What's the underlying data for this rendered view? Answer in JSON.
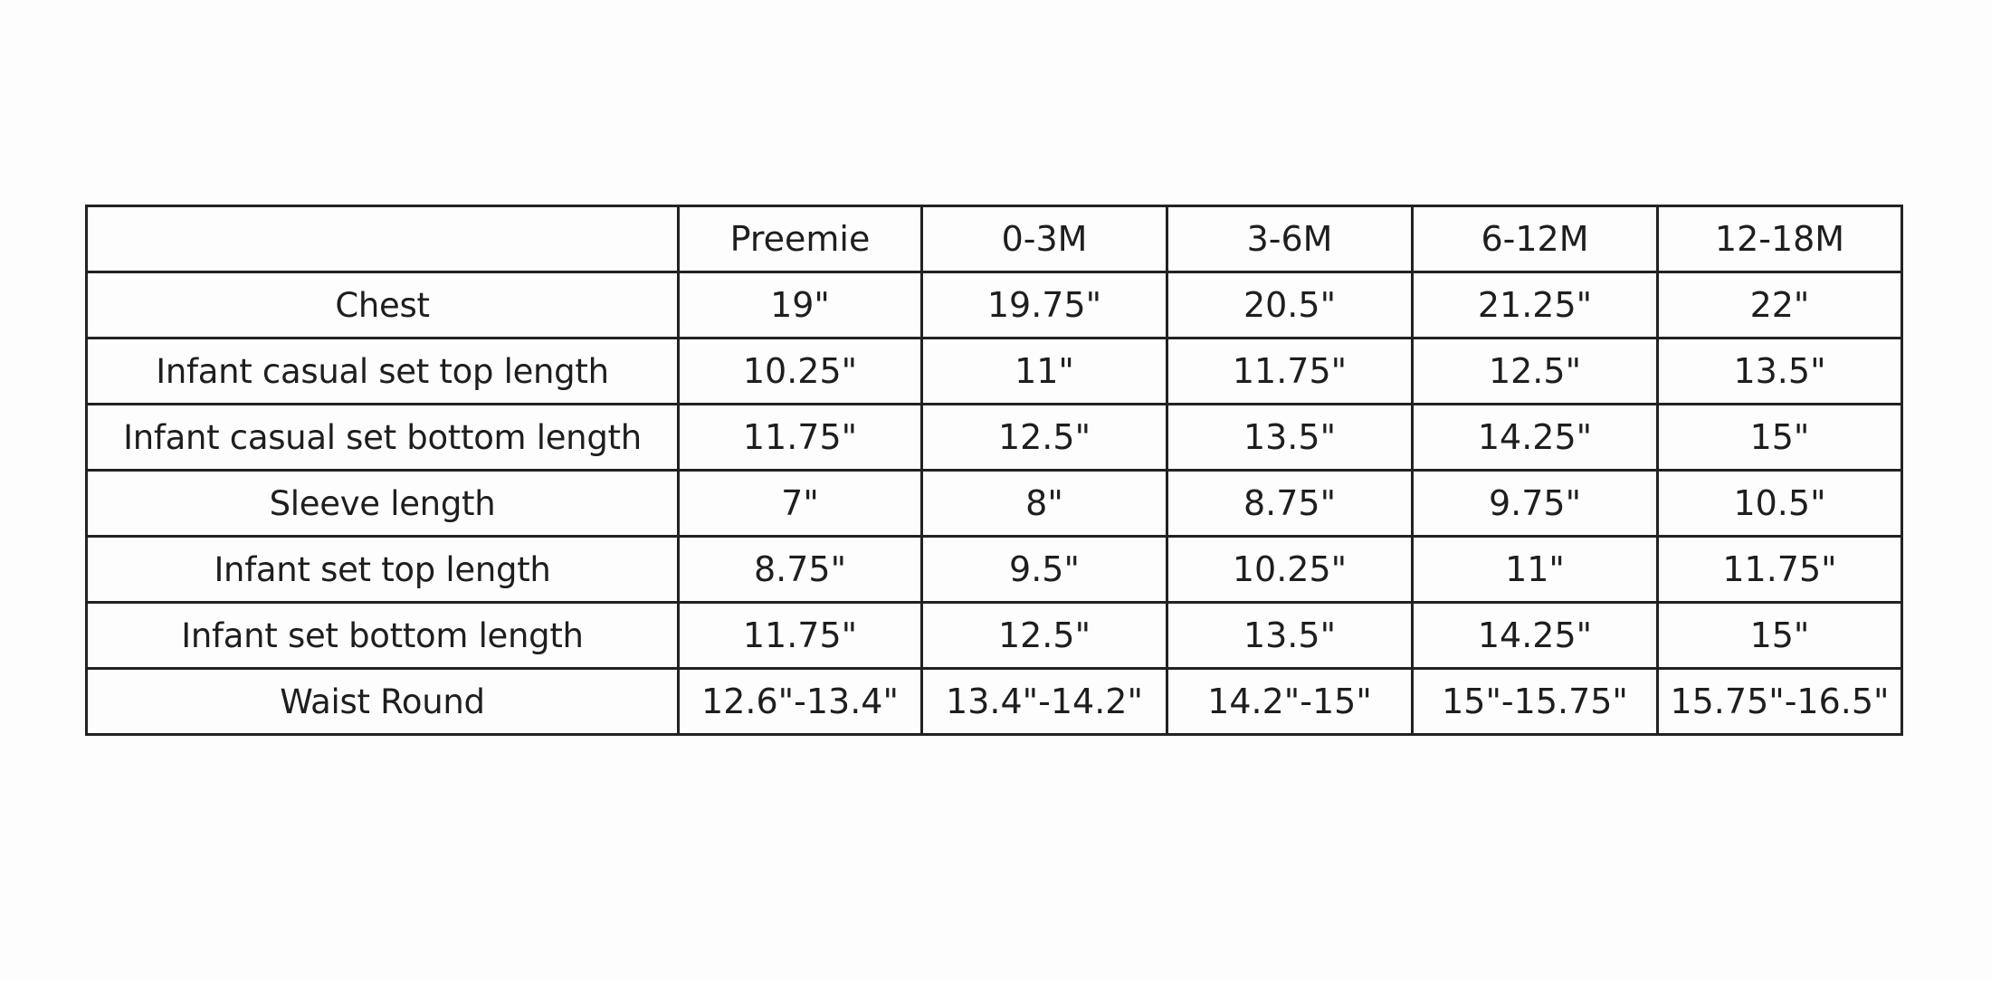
{
  "table": {
    "columns": [
      "Preemie",
      "0-3M",
      "3-6M",
      "6-12M",
      "12-18M"
    ],
    "rows": [
      {
        "label": "Chest",
        "cells": [
          "19\"",
          "19.75\"",
          "20.5\"",
          "21.25\"",
          "22\""
        ]
      },
      {
        "label": "Infant casual set top length",
        "cells": [
          "10.25\"",
          "11\"",
          "11.75\"",
          "12.5\"",
          "13.5\""
        ]
      },
      {
        "label": "Infant casual set bottom length",
        "cells": [
          "11.75\"",
          "12.5\"",
          "13.5\"",
          "14.25\"",
          "15\""
        ]
      },
      {
        "label": "Sleeve length",
        "cells": [
          "7\"",
          "8\"",
          "8.75\"",
          "9.75\"",
          "10.5\""
        ]
      },
      {
        "label": "Infant set top length",
        "cells": [
          "8.75\"",
          "9.5\"",
          "10.25\"",
          "11\"",
          "11.75\""
        ]
      },
      {
        "label": "Infant set bottom length",
        "cells": [
          "11.75\"",
          "12.5\"",
          "13.5\"",
          "14.25\"",
          "15\""
        ]
      },
      {
        "label": "Waist Round",
        "cells": [
          "12.6\"-13.4\"",
          "13.4\"-14.2\"",
          "14.2\"-15\"",
          "15\"-15.75\"",
          "15.75\"-16.5\""
        ]
      }
    ]
  }
}
